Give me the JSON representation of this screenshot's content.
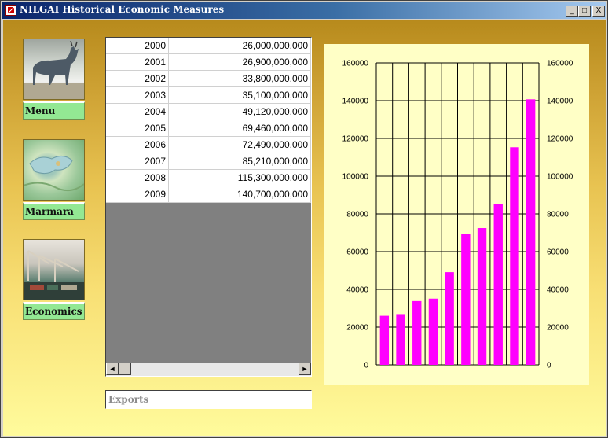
{
  "window": {
    "title": "NILGAI Historical Economic Measures",
    "controls": {
      "minimize": "_",
      "maximize": "□",
      "close": "X"
    }
  },
  "nav": [
    {
      "id": "menu",
      "label": "Menu",
      "image": "nilgai-antelope-photo"
    },
    {
      "id": "marmara",
      "label": "Marmara",
      "image": "marmara-region-map"
    },
    {
      "id": "economics",
      "label": "Economics",
      "image": "container-port-cranes-photo"
    }
  ],
  "table": {
    "rows": [
      {
        "year": "2000",
        "value": "26,000,000,000"
      },
      {
        "year": "2001",
        "value": "26,900,000,000"
      },
      {
        "year": "2002",
        "value": "33,800,000,000"
      },
      {
        "year": "2003",
        "value": "35,100,000,000"
      },
      {
        "year": "2004",
        "value": "49,120,000,000"
      },
      {
        "year": "2005",
        "value": "69,460,000,000"
      },
      {
        "year": "2006",
        "value": "72,490,000,000"
      },
      {
        "year": "2007",
        "value": "85,210,000,000"
      },
      {
        "year": "2008",
        "value": "115,300,000,000"
      },
      {
        "year": "2009",
        "value": "140,700,000,000"
      }
    ],
    "scroll_left": "◄",
    "scroll_right": "►"
  },
  "measure_field": {
    "value": "Exports"
  },
  "colors": {
    "bar": "#ff00ff",
    "chart_bg": "#ffffc6",
    "nav_label_bg": "#93e893"
  },
  "chart_data": {
    "type": "bar",
    "categories": [
      "2000",
      "2001",
      "2002",
      "2003",
      "2004",
      "2005",
      "2006",
      "2007",
      "2008",
      "2009"
    ],
    "values": [
      26000,
      26900,
      33800,
      35100,
      49120,
      69460,
      72490,
      85210,
      115300,
      140700
    ],
    "ylim": [
      0,
      160000
    ],
    "yticks": [
      0,
      20000,
      40000,
      60000,
      80000,
      100000,
      120000,
      140000,
      160000
    ],
    "y_axis_right": true,
    "grid": true,
    "legend": "none",
    "title": "",
    "xlabel": "",
    "ylabel": ""
  }
}
